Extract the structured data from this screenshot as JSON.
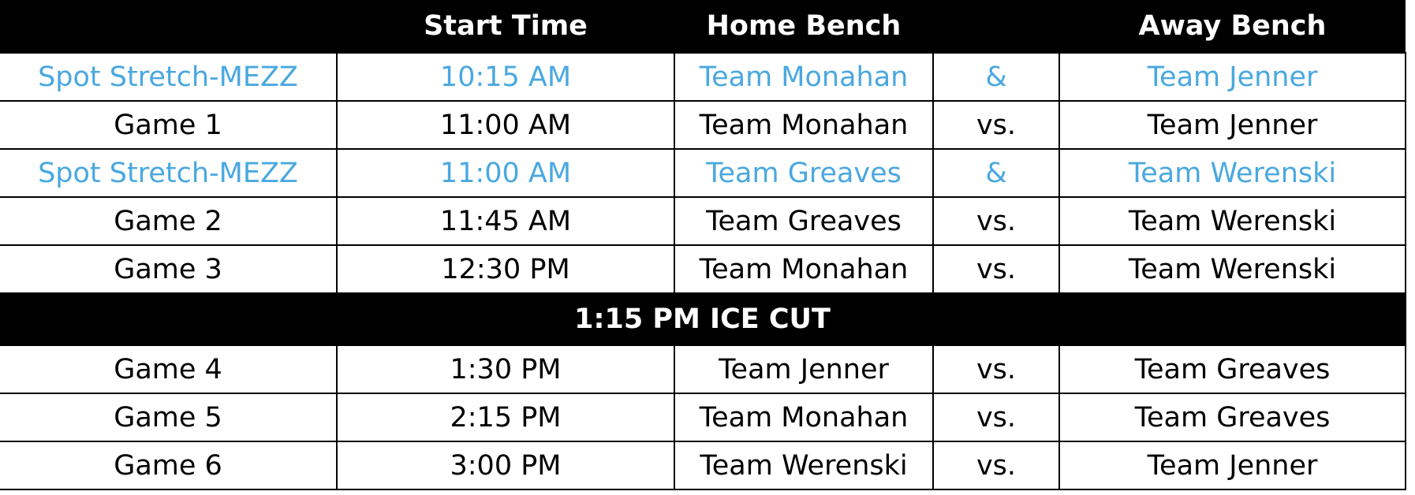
{
  "header": {
    "start_time": "Start Time",
    "home_bench": "Home Bench",
    "away_bench": "Away Bench"
  },
  "rows": [
    {
      "cells": [
        "Spot Stretch-MEZZ",
        "10:15 AM",
        "Team Monahan",
        "&",
        "Team Jenner"
      ],
      "color": "#4aa8e0"
    },
    {
      "cells": [
        "Game 1",
        "11:00 AM",
        "Team Monahan",
        "vs.",
        "Team Jenner"
      ],
      "color": "#000000"
    },
    {
      "cells": [
        "Spot Stretch-MEZZ",
        "11:00 AM",
        "Team Greaves",
        "&",
        "Team Werenski"
      ],
      "color": "#4aa8e0"
    },
    {
      "cells": [
        "Game 2",
        "11:45 AM",
        "Team Greaves",
        "vs.",
        "Team Werenski"
      ],
      "color": "#000000"
    },
    {
      "cells": [
        "Game 3",
        "12:30 PM",
        "Team Monahan",
        "vs.",
        "Team Werenski"
      ],
      "color": "#000000"
    },
    {
      "banner": "1:15 PM ICE CUT"
    },
    {
      "cells": [
        "Game 4",
        "1:30 PM",
        "Team Jenner",
        "vs.",
        "Team Greaves"
      ],
      "color": "#000000"
    },
    {
      "cells": [
        "Game 5",
        "2:15 PM",
        "Team Monahan",
        "vs.",
        "Team Greaves"
      ],
      "color": "#000000"
    },
    {
      "cells": [
        "Game 6",
        "3:00 PM",
        "Team Werenski",
        "vs.",
        "Team Jenner"
      ],
      "color": "#000000"
    }
  ]
}
